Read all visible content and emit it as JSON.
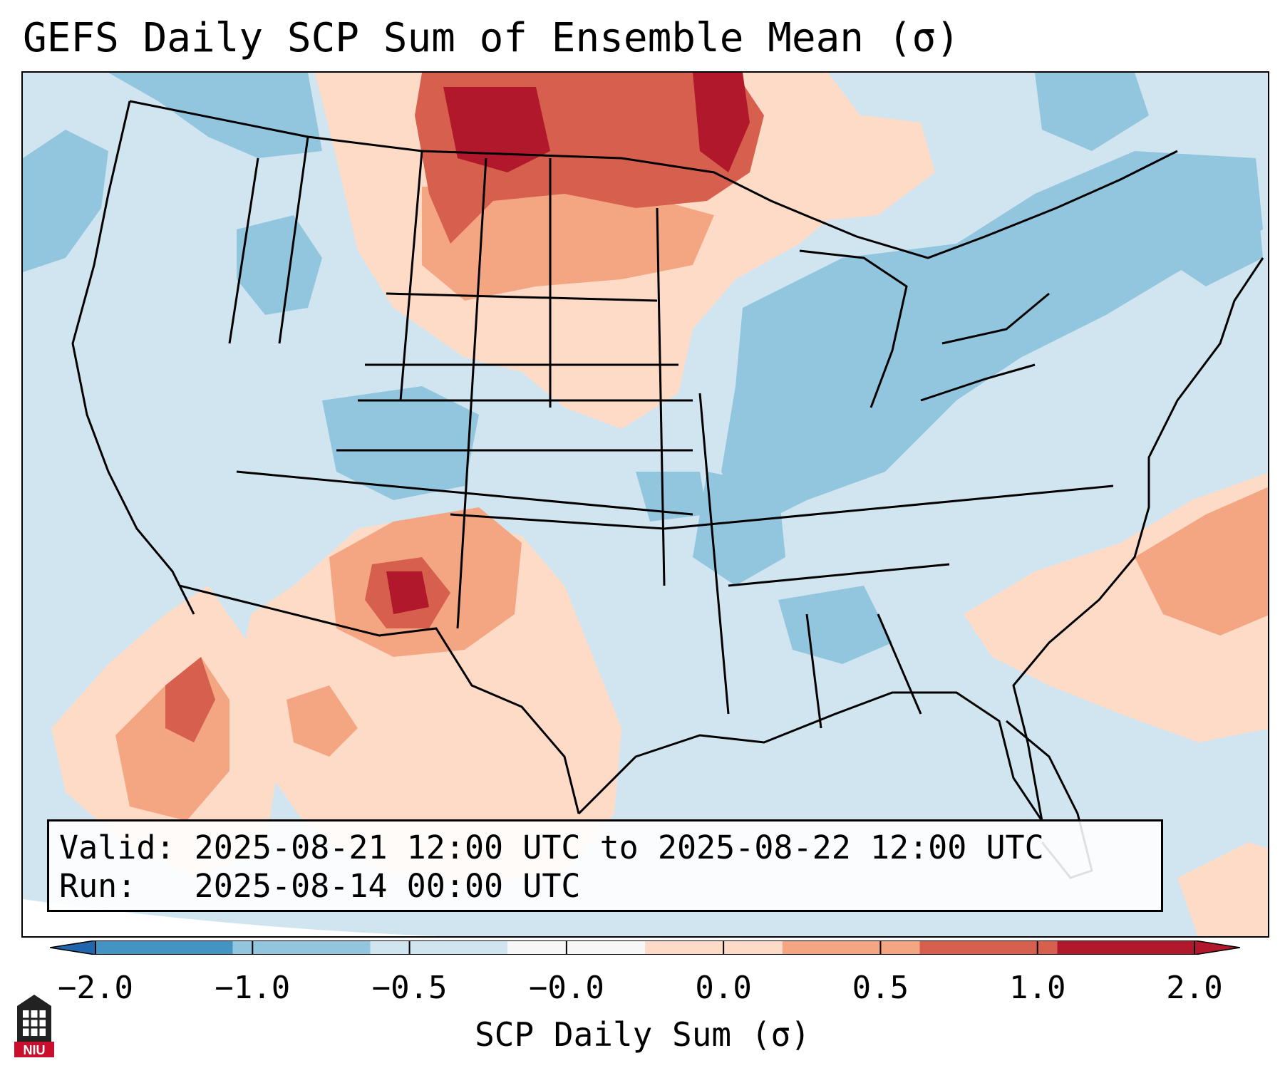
{
  "title": "GEFS Daily SCP Sum of Ensemble Mean (σ)",
  "info": {
    "valid_label": "Valid:",
    "valid_value": "2025-08-21 12:00 UTC to 2025-08-22 12:00 UTC",
    "run_label": "Run:",
    "run_value": "2025-08-14 00:00 UTC"
  },
  "colorbar": {
    "label": "SCP Daily Sum (σ)",
    "ticks": [
      "−2.0",
      "−1.0",
      "−0.5",
      "−0.0",
      "0.0",
      "0.5",
      "1.0",
      "2.0"
    ],
    "colors": [
      "#4393c3",
      "#92c5de",
      "#d1e5f0",
      "#f7f7f7",
      "#fddbc7",
      "#f4a582",
      "#d6604d",
      "#b2182b"
    ],
    "under_color": "#2166ac",
    "over_color": "#b2182b"
  },
  "map": {
    "background_color": "#d1e5f0",
    "regions": [
      {
        "name": "canadian-prairies-high",
        "level": "1.0 to 2.0"
      },
      {
        "name": "northern-plains-moderate",
        "level": "0.5 to 1.0"
      },
      {
        "name": "new-mexico-high",
        "level": "1.0 to 2.0"
      },
      {
        "name": "baja-pacific-moderate",
        "level": "0.5 to 1.0"
      },
      {
        "name": "atlantic-offshore-moderate",
        "level": "0.5 to 1.0"
      },
      {
        "name": "great-lakes-ohio-valley-negative",
        "level": "-1.0 to -0.5"
      }
    ]
  },
  "logo": {
    "text": "NIU"
  }
}
